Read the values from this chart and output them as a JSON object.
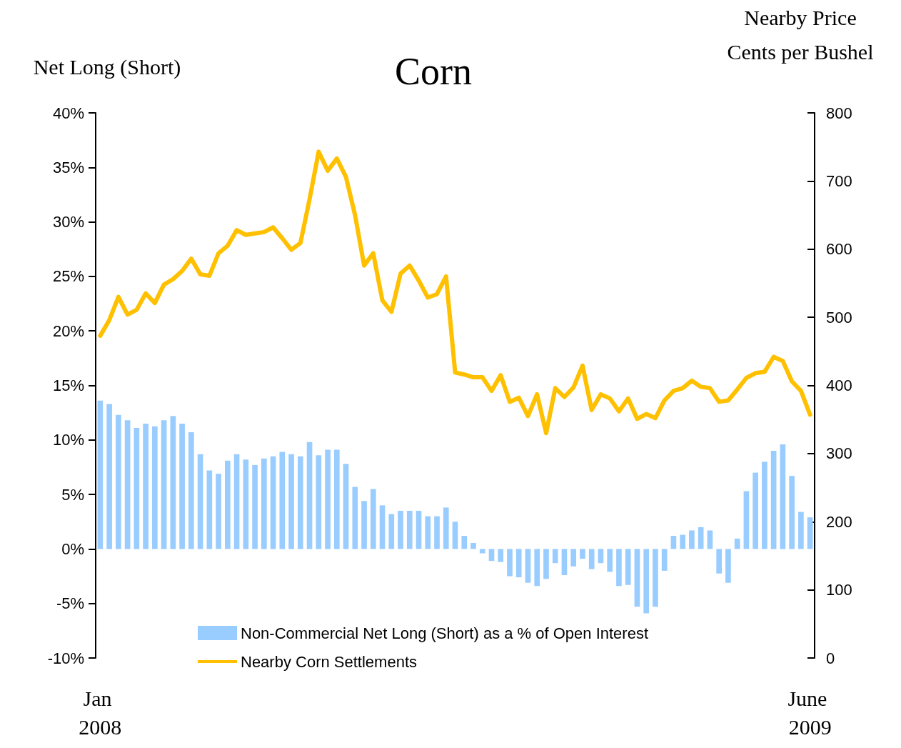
{
  "chart_data": {
    "type": "bar",
    "title": "Corn",
    "ylabel": "Net Long (Short)",
    "y2label": "Nearby Price\nCents per Bushel",
    "categories": [
      "Jan 2008",
      null,
      null,
      null,
      null,
      null,
      null,
      null,
      null,
      null,
      null,
      null,
      null,
      null,
      null,
      null,
      null,
      null,
      null,
      null,
      null,
      null,
      null,
      null,
      null,
      null,
      null,
      null,
      null,
      null,
      null,
      null,
      null,
      null,
      null,
      null,
      null,
      null,
      null,
      null,
      null,
      null,
      null,
      null,
      null,
      null,
      null,
      null,
      null,
      null,
      null,
      null,
      null,
      null,
      null,
      null,
      null,
      null,
      null,
      null,
      null,
      null,
      null,
      null,
      null,
      null,
      null,
      null,
      null,
      null,
      null,
      null,
      null,
      null,
      null,
      null,
      null,
      null,
      "June 2009"
    ],
    "series": [
      {
        "name": "Non-Commercial Net Long (Short) as a % of Open Interest",
        "color": "#99ccff",
        "values": [
          13.6,
          13.3,
          12.3,
          11.8,
          11.1,
          11.5,
          11.25,
          11.8,
          12.2,
          11.5,
          10.7,
          8.7,
          7.2,
          6.9,
          8.1,
          8.7,
          8.2,
          7.7,
          8.3,
          8.5,
          8.9,
          8.7,
          8.5,
          9.8,
          8.6,
          9.1,
          9.1,
          7.8,
          5.7,
          4.4,
          5.5,
          4.0,
          3.2,
          3.5,
          3.5,
          3.5,
          3.0,
          3.0,
          3.8,
          2.5,
          1.2,
          0.55,
          -0.4,
          -1.1,
          -1.2,
          -2.5,
          -2.6,
          -3.1,
          -3.4,
          -2.75,
          -1.3,
          -2.4,
          -1.6,
          -0.9,
          -1.85,
          -1.3,
          -2.1,
          -3.4,
          -3.3,
          -5.3,
          -5.9,
          -5.3,
          -2.0,
          1.2,
          1.3,
          1.7,
          2.0,
          1.7,
          -2.25,
          -3.1,
          0.95,
          5.3,
          7.0,
          8.0,
          9.0,
          9.6,
          6.7,
          3.4,
          2.9
        ]
      },
      {
        "name": "Nearby Corn Settlements",
        "type": "line",
        "axis": "y2",
        "color": "#ffc000",
        "values": [
          473,
          496,
          530,
          504,
          511,
          535,
          521,
          548,
          556,
          568,
          586,
          563,
          561,
          594,
          605,
          628,
          621,
          623,
          625,
          632,
          616,
          599,
          609,
          673,
          743,
          715,
          733,
          706,
          650,
          576,
          594,
          525,
          508,
          564,
          576,
          554,
          529,
          534,
          560,
          419,
          416,
          412,
          412,
          392,
          415,
          376,
          382,
          355,
          387,
          330,
          396,
          383,
          397,
          429,
          364,
          387,
          381,
          362,
          381,
          351,
          358,
          352,
          378,
          392,
          396,
          407,
          398,
          396,
          376,
          378,
          394,
          411,
          418,
          420,
          442,
          436,
          406,
          392,
          357
        ]
      }
    ],
    "ylim": [
      -10,
      40
    ],
    "yticks": [
      {
        "value": -10,
        "label": "-10%"
      },
      {
        "value": -5,
        "label": "-5%"
      },
      {
        "value": 0,
        "label": "0%"
      },
      {
        "value": 5,
        "label": "5%"
      },
      {
        "value": 10,
        "label": "10%"
      },
      {
        "value": 15,
        "label": "15%"
      },
      {
        "value": 20,
        "label": "20%"
      },
      {
        "value": 25,
        "label": "25%"
      },
      {
        "value": 30,
        "label": "30%"
      },
      {
        "value": 35,
        "label": "35%"
      },
      {
        "value": 40,
        "label": "40%"
      }
    ],
    "y2lim": [
      0,
      800
    ],
    "y2ticks": [
      0,
      100,
      200,
      300,
      400,
      500,
      600,
      700,
      800
    ],
    "grid": false,
    "legend": "bottom",
    "marker": "none",
    "line_style": "solid"
  }
}
